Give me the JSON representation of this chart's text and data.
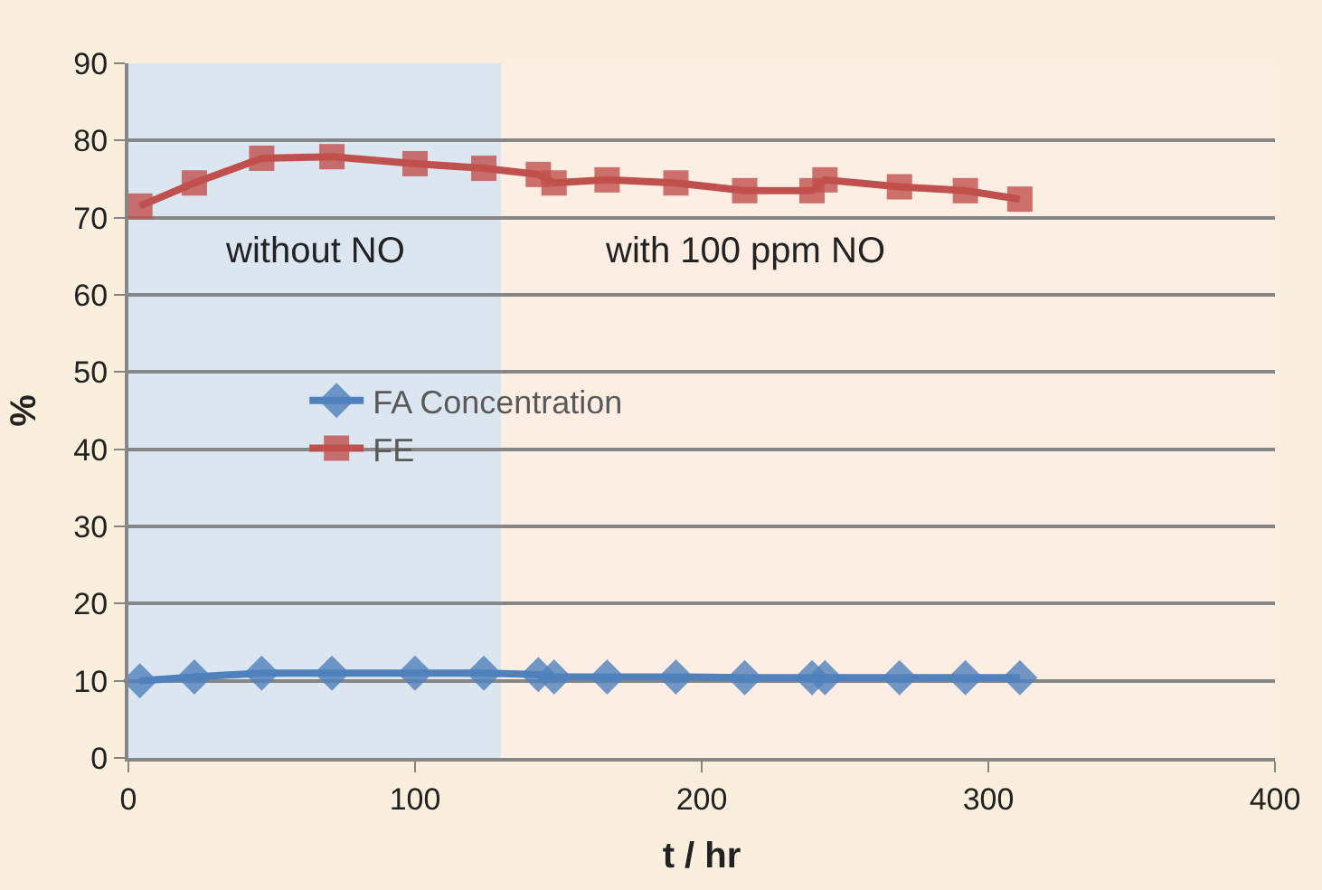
{
  "chart_data": {
    "type": "line",
    "xlabel": "t / hr",
    "ylabel": "%",
    "x": [
      4,
      23,
      46.5,
      71,
      100,
      124,
      143,
      148.5,
      167,
      191,
      215,
      238.5,
      243,
      269,
      292,
      311
    ],
    "series": [
      {
        "name": "FA Concentration",
        "color": "#4f81bd",
        "marker": "diamond",
        "values": [
          10,
          10.5,
          11,
          11,
          11,
          11,
          10.8,
          10.5,
          10.5,
          10.5,
          10.4,
          10.4,
          10.4,
          10.4,
          10.4,
          10.4
        ]
      },
      {
        "name": "FE",
        "color": "#c0504d",
        "marker": "square",
        "values": [
          71.5,
          74.5,
          77.7,
          77.9,
          77,
          76.4,
          75.6,
          74.5,
          74.9,
          74.5,
          73.5,
          73.5,
          74.9,
          74,
          73.5,
          72.4
        ]
      }
    ],
    "xlim": [
      0,
      400
    ],
    "xticks": [
      0,
      100,
      200,
      300,
      400
    ],
    "ylim": [
      0,
      90
    ],
    "yticks": [
      0,
      10,
      20,
      30,
      40,
      50,
      60,
      70,
      80,
      90
    ],
    "grid": "y",
    "legend": "left",
    "bands": [
      {
        "axis": "x",
        "from": 0,
        "to": 130,
        "label": "without NO",
        "color": "#dce6f1"
      },
      {
        "axis": "x",
        "from": 130,
        "to": 400,
        "label": "with 100 ppm NO",
        "color": "#fdeee4"
      }
    ]
  }
}
